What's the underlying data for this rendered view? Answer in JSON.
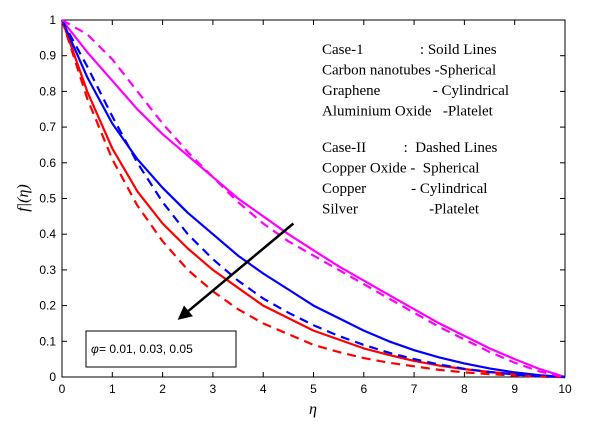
{
  "chart_data": {
    "type": "line",
    "xlabel": "η",
    "ylabel": "f|(η)",
    "xlim": [
      0,
      10
    ],
    "ylim": [
      0,
      1
    ],
    "xticks": [
      "0",
      "1",
      "2",
      "3",
      "4",
      "5",
      "6",
      "7",
      "8",
      "9",
      "10"
    ],
    "yticks": [
      "0",
      "0.1",
      "0.2",
      "0.3",
      "0.4",
      "0.5",
      "0.6",
      "0.7",
      "0.8",
      "0.9",
      "1"
    ],
    "grid": false,
    "x": [
      0,
      0.5,
      1,
      1.5,
      2,
      2.5,
      3,
      3.5,
      4,
      4.5,
      5,
      5.5,
      6,
      6.5,
      7,
      7.5,
      8,
      8.5,
      9,
      9.5,
      10
    ],
    "series": [
      {
        "name": "Carbon nanotubes - Spherical (Case-1)",
        "color": "#ff0000",
        "style": "solid",
        "values": [
          1.0,
          0.8,
          0.64,
          0.52,
          0.43,
          0.36,
          0.3,
          0.25,
          0.2,
          0.165,
          0.13,
          0.105,
          0.08,
          0.062,
          0.045,
          0.032,
          0.022,
          0.014,
          0.008,
          0.003,
          0.0
        ]
      },
      {
        "name": "Graphene - Cylindrical (Case-1)",
        "color": "#0000ff",
        "style": "solid",
        "values": [
          1.0,
          0.84,
          0.71,
          0.61,
          0.53,
          0.46,
          0.4,
          0.34,
          0.29,
          0.245,
          0.2,
          0.165,
          0.13,
          0.1,
          0.075,
          0.055,
          0.038,
          0.024,
          0.013,
          0.005,
          0.0
        ]
      },
      {
        "name": "Aluminium Oxide - Platelet (Case-1)",
        "color": "#ff00ff",
        "style": "solid",
        "values": [
          1.0,
          0.91,
          0.83,
          0.75,
          0.68,
          0.62,
          0.56,
          0.5,
          0.45,
          0.4,
          0.355,
          0.31,
          0.27,
          0.23,
          0.19,
          0.15,
          0.115,
          0.08,
          0.05,
          0.022,
          0.0
        ]
      },
      {
        "name": "Copper Oxide - Spherical (Case-II)",
        "color": "#ff0000",
        "style": "dashed",
        "values": [
          1.0,
          0.78,
          0.61,
          0.48,
          0.38,
          0.3,
          0.24,
          0.19,
          0.15,
          0.12,
          0.09,
          0.07,
          0.053,
          0.04,
          0.03,
          0.02,
          0.013,
          0.008,
          0.004,
          0.001,
          0.0
        ]
      },
      {
        "name": "Copper - Cylindrical (Case-II)",
        "color": "#0000ff",
        "style": "dashed",
        "values": [
          1.0,
          0.87,
          0.73,
          0.6,
          0.49,
          0.4,
          0.33,
          0.27,
          0.22,
          0.18,
          0.145,
          0.115,
          0.09,
          0.068,
          0.05,
          0.035,
          0.023,
          0.014,
          0.007,
          0.002,
          0.0
        ]
      },
      {
        "name": "Silver - Platelet (Case-II)",
        "color": "#ff00ff",
        "style": "dashed",
        "values": [
          1.0,
          0.96,
          0.89,
          0.8,
          0.71,
          0.63,
          0.56,
          0.49,
          0.43,
          0.38,
          0.34,
          0.3,
          0.26,
          0.22,
          0.18,
          0.14,
          0.105,
          0.07,
          0.04,
          0.015,
          0.0
        ]
      }
    ],
    "legend_text": [
      "Case-1               : Soild Lines",
      "Carbon nanotubes -Spherical",
      "Graphene              - Cylindrical",
      "Aluminium Oxide   -Platelet",
      "Case-II          :  Dashed Lines",
      "Copper Oxide -  Spherical",
      "Copper            - Cylindrical",
      "Silver                   -Platelet"
    ],
    "annotation": {
      "text": "= 0.01, 0.03, 0.05",
      "symbol": "φ",
      "arrow_from": [
        4.6,
        0.43
      ],
      "arrow_to": [
        2.3,
        0.16
      ]
    },
    "legend_position": "top-right"
  }
}
